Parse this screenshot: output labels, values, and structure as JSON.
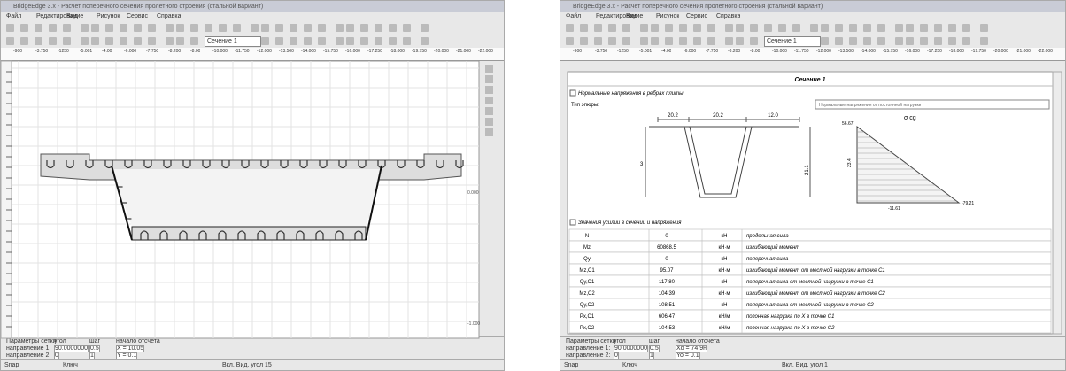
{
  "left_window": {
    "title": "BridgeEdge 3.x - Расчет поперечного сечения пролетного строения (стальной вариант)",
    "menu": [
      "Файл",
      "Редактирование",
      "Вид",
      "Рисунок",
      "Сервис",
      "Справка"
    ],
    "section_combo": "Сечение 1",
    "ruler": [
      "-900",
      "-3.750",
      "-1250",
      "-5.001",
      "-4.00",
      "-6.000",
      "-7.750",
      "-8.200",
      "-8.00",
      "-10.000",
      "-11.750",
      "-12.000",
      "-13.500",
      "-14.000",
      "-15.750",
      "-16.000",
      "-17.250",
      "-18.000",
      "-19.750",
      "-20.000",
      "-21.000",
      "-22.000"
    ],
    "side_marks": [
      "0.000",
      "-1.000"
    ],
    "grid_panel": {
      "heading": [
        "Параметры сетки",
        "угол",
        "шаг",
        "начало отсчета"
      ],
      "rows": [
        [
          "направление 1:",
          "90.0000000",
          "0.5",
          "X = 10.05"
        ],
        [
          "направление 2:",
          "0",
          "1",
          "Y = 0.1"
        ]
      ]
    },
    "status": [
      "Snap",
      "Ключ",
      "Вкл. Вид, угол 15"
    ]
  },
  "right_window": {
    "title": "BridgeEdge 3.x - Расчет поперечного сечения пролетного строения (стальной вариант)",
    "menu": [
      "Файл",
      "Редактирование",
      "Вид",
      "Рисунок",
      "Сервис",
      "Справка"
    ],
    "section_combo": "Сечение 1",
    "ruler": [
      "-900",
      "-3.750",
      "-1250",
      "-5.001",
      "-4.00",
      "-6.000",
      "-7.750",
      "-8.200",
      "-8.00",
      "-10.000",
      "-11.750",
      "-12.000",
      "-13.500",
      "-14.000",
      "-15.750",
      "-16.000",
      "-17.250",
      "-18.000",
      "-19.750",
      "-20.000",
      "-21.000",
      "-22.000"
    ],
    "section_title": "Сечение 1",
    "group1": "Нормальные напряжения в ребрах плиты",
    "diagram_type_label": "Тип эпюры:",
    "diagram_type_value": "Нормальные напряжения от постоянной нагрузки",
    "dims": [
      "20.2",
      "20.2",
      "12.0"
    ],
    "y_dims": [
      "3",
      "21.1"
    ],
    "diagram_labels": {
      "title": "σ cg",
      "top": "56.67",
      "mid": "23.4",
      "right": "-79.21",
      "bottom": "-11.61"
    },
    "group2": "Значения усилий в сечении и напряжения",
    "table": [
      [
        "N",
        "0",
        "кН",
        "продольная сила"
      ],
      [
        "Mz",
        "60868.5",
        "кН·м",
        "изгибающий момент"
      ],
      [
        "Qy",
        "0",
        "кН",
        "поперечная сила"
      ],
      [
        "Mz,C1",
        "95.07",
        "кН·м",
        "изгибающий момент от местной нагрузки в точке С1"
      ],
      [
        "Qy,C1",
        "117.80",
        "кН",
        "поперечная сила от местной нагрузки в точке С1"
      ],
      [
        "Mz,C2",
        "104.39",
        "кН·м",
        "изгибающий момент от местной нагрузки в точке С2"
      ],
      [
        "Qy,C2",
        "108.51",
        "кН",
        "поперечная сила от местной нагрузки в точке С2"
      ],
      [
        "Px,C1",
        "606.47",
        "кН/м",
        "погонная нагрузка по X в точке С1"
      ],
      [
        "Px,C2",
        "104.53",
        "кН/м",
        "погонная нагрузка по X в точке С2"
      ]
    ],
    "grid_panel": {
      "heading": [
        "Параметры сетки",
        "угол",
        "шаг",
        "начало отсчета"
      ],
      "rows": [
        [
          "направление 1:",
          "90.0000000",
          "0.5",
          "Xo = 74.9н"
        ],
        [
          "направление 2:",
          "0",
          "1",
          "Yo = 0.1"
        ]
      ]
    },
    "status": [
      "Snap",
      "Ключ",
      "Вкл. Вид, угол 1"
    ]
  }
}
